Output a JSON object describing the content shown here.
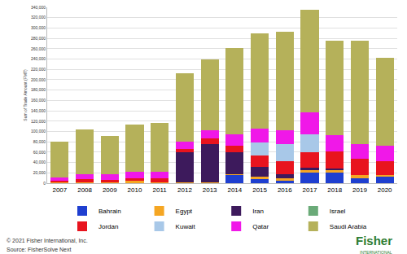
{
  "chart_data": {
    "type": "bar",
    "stacked": true,
    "grid": true,
    "legend": "bottom",
    "y_label": "Sum of Trade Amount (FMT)",
    "categories": [
      "2007",
      "2008",
      "2009",
      "2010",
      "2011",
      "2012",
      "2013",
      "2014",
      "2015",
      "2016",
      "2017",
      "2018",
      "2019",
      "2020"
    ],
    "series": [
      {
        "name": "Bahrain",
        "color": "#1f3fd0",
        "values": [
          0,
          0,
          0,
          0,
          0,
          0,
          0,
          16000,
          8000,
          5000,
          20000,
          20000,
          10000,
          12000
        ]
      },
      {
        "name": "Egypt",
        "color": "#f5a623",
        "values": [
          1000,
          2000,
          2000,
          5000,
          2000,
          2000,
          2000,
          2000,
          5000,
          5000,
          5000,
          5000,
          5000,
          3000
        ]
      },
      {
        "name": "Iran",
        "color": "#3d1a5c",
        "values": [
          0,
          0,
          0,
          0,
          0,
          58000,
          74000,
          42000,
          18000,
          8000,
          5000,
          3000,
          0,
          0
        ]
      },
      {
        "name": "Israel",
        "color": "#6aaa78",
        "values": [
          0,
          0,
          0,
          0,
          0,
          0,
          0,
          0,
          0,
          0,
          0,
          0,
          0,
          0
        ]
      },
      {
        "name": "Jordan",
        "color": "#e8141e",
        "values": [
          3000,
          6000,
          5000,
          5000,
          8000,
          6000,
          10000,
          12000,
          22000,
          25000,
          30000,
          33000,
          32000,
          28000
        ]
      },
      {
        "name": "Kuwait",
        "color": "#a8c8e8",
        "values": [
          0,
          0,
          0,
          0,
          0,
          0,
          0,
          0,
          26000,
          33000,
          35000,
          0,
          0,
          0
        ]
      },
      {
        "name": "Qatar",
        "color": "#f018e8",
        "values": [
          7000,
          10000,
          10000,
          12000,
          12000,
          14000,
          16000,
          22000,
          26000,
          26000,
          42000,
          32000,
          28000,
          30000
        ]
      },
      {
        "name": "Saudi Arabia",
        "color": "#b5b15a",
        "values": [
          69000,
          86000,
          75000,
          91000,
          95000,
          132000,
          138000,
          167000,
          185000,
          191000,
          198000,
          182000,
          200000,
          170000
        ]
      }
    ],
    "ylim": [
      0,
      340000
    ],
    "yticks": [
      0,
      {
        "value": 20000,
        "label": "20,000"
      },
      {
        "value": 40000,
        "label": "40,000"
      },
      {
        "value": 60000,
        "label": "60,000"
      },
      {
        "value": 80000,
        "label": "80,000"
      },
      {
        "value": 100000,
        "label": "100,000"
      },
      {
        "value": 120000,
        "label": "120,000"
      },
      {
        "value": 140000,
        "label": "140,000"
      },
      {
        "value": 160000,
        "label": "160,000"
      },
      {
        "value": 180000,
        "label": "180,000"
      },
      {
        "value": 200000,
        "label": "200,000"
      },
      {
        "value": 220000,
        "label": "220,000"
      },
      {
        "value": 240000,
        "label": "240,000"
      },
      {
        "value": 260000,
        "label": "260,000"
      },
      {
        "value": 280000,
        "label": "280,000"
      },
      {
        "value": 300000,
        "label": "300,000"
      },
      {
        "value": 320000,
        "label": "320,000"
      },
      {
        "value": 340000,
        "label": "340,000"
      }
    ],
    "footer": [
      "© 2021 Fisher International, Inc.",
      "Source: FisherSolve Next"
    ],
    "logo": [
      "Fisher",
      "INTERNATIONAL"
    ]
  }
}
